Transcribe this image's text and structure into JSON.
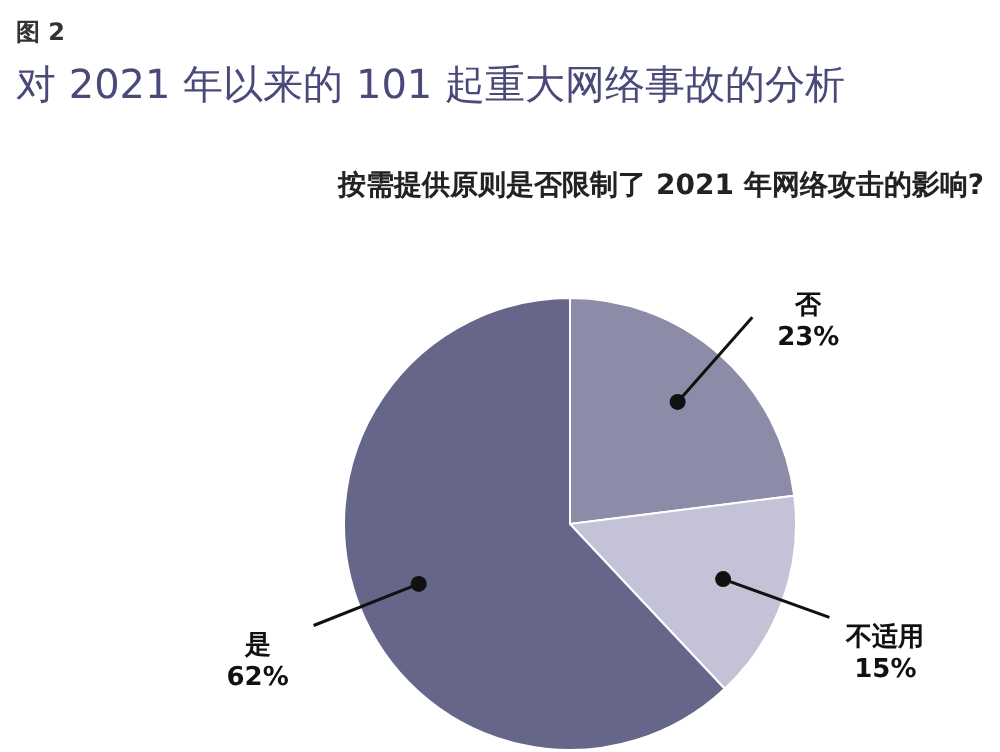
{
  "chart_data": {
    "type": "pie",
    "title": "对 2021 年以来的 101 起重大网络事故的分析",
    "subtitle": "按需提供原则是否限制了 2021 年网络攻击的影响?",
    "annotations": [
      "图 2"
    ],
    "categories": [
      "否",
      "不适用",
      "是"
    ],
    "values": [
      23,
      15,
      62
    ],
    "value_labels": [
      "23%",
      "15%",
      "62%"
    ],
    "colors": [
      "#8c8ca8",
      "#c3c2d6",
      "#66668a"
    ]
  }
}
